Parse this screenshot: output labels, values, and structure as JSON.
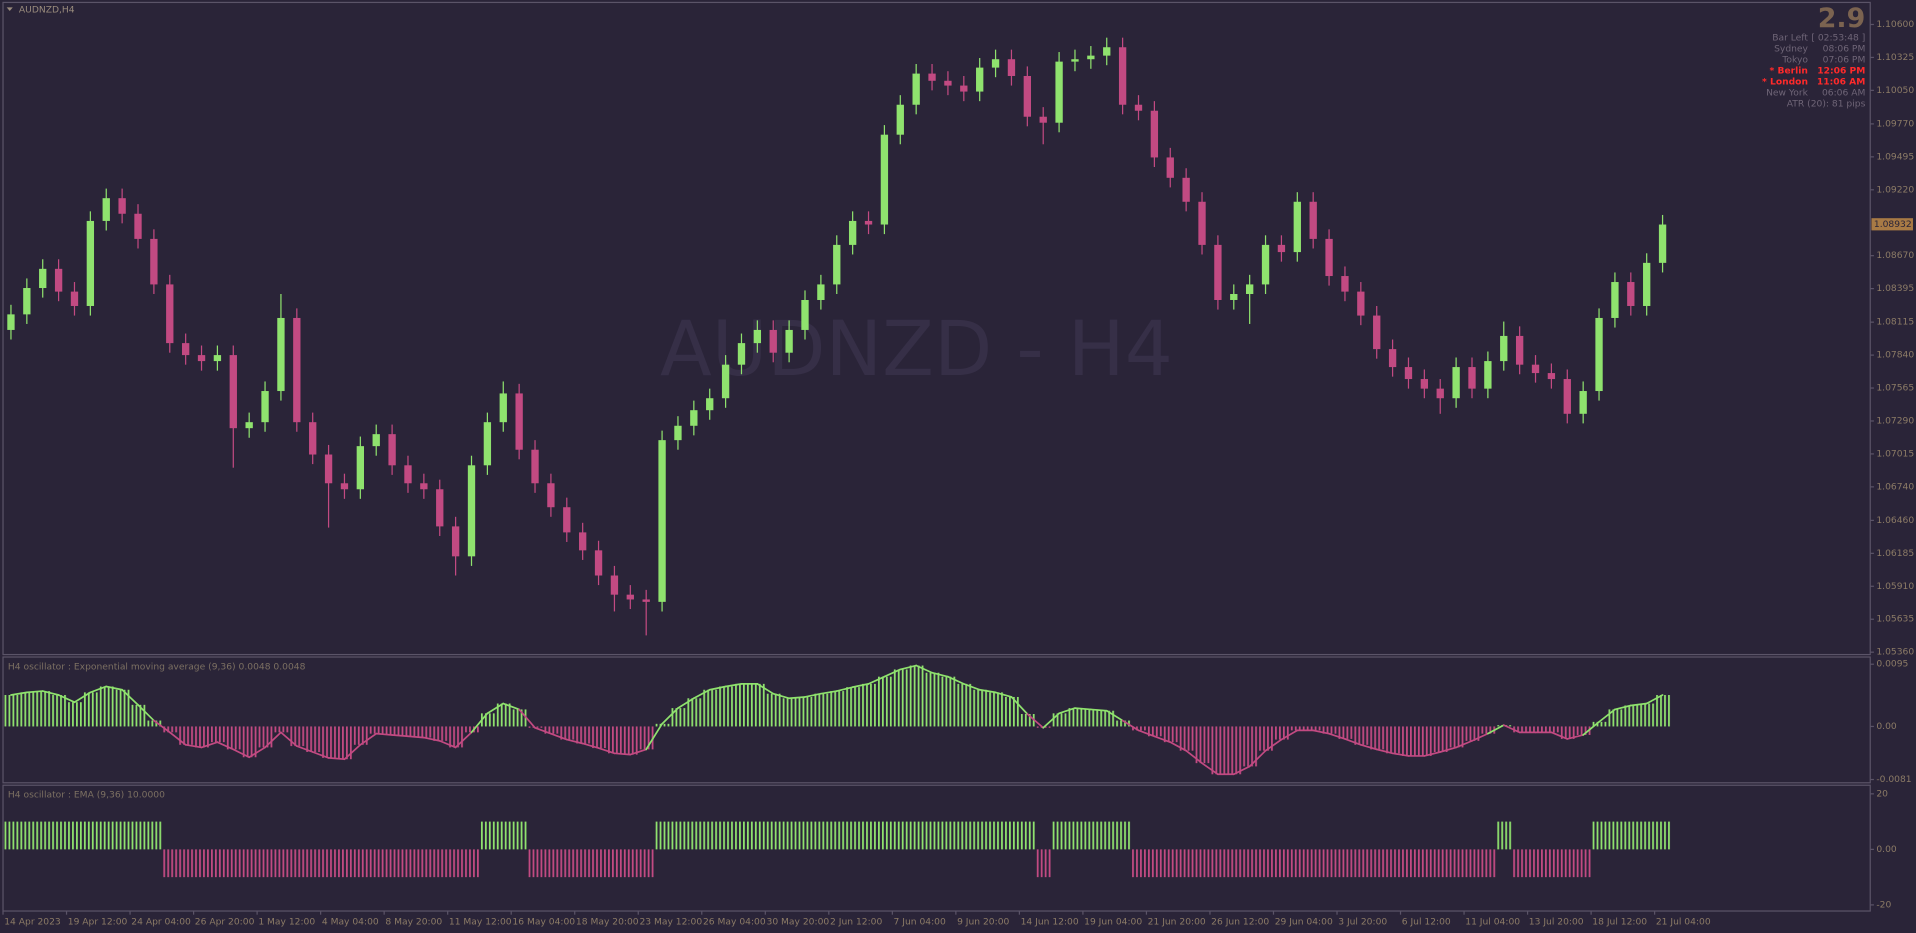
{
  "chart_data": [
    {
      "type": "candlestick",
      "title": "AUDNZD,H4",
      "watermark": "AUDNZD - H4",
      "up_color": "#8fe26e",
      "down_color": "#c24a82",
      "open": [
        1.0805,
        1.0818,
        1.084,
        1.0856,
        1.0837,
        1.0825,
        1.0896,
        1.0915,
        1.0902,
        1.0881,
        1.0843,
        1.0794,
        1.0784,
        1.0779,
        1.0784,
        1.0723,
        1.0728,
        1.0754,
        1.0815,
        1.0728,
        1.0701,
        1.0677,
        1.0672,
        1.0708,
        1.0718,
        1.0692,
        1.0677,
        1.0672,
        1.0641,
        1.0616,
        1.0692,
        1.0728,
        1.0752,
        1.0705,
        1.0677,
        1.0657,
        1.0636,
        1.0621,
        1.06,
        1.0584,
        1.058,
        1.0578,
        1.0713,
        1.0725,
        1.0738,
        1.0748,
        1.0776,
        1.0794,
        1.0805,
        1.0786,
        1.0805,
        1.083,
        1.0843,
        1.0876,
        1.0896,
        1.0893,
        1.0968,
        1.0993,
        1.1019,
        1.1013,
        1.1009,
        1.1004,
        1.1024,
        1.1031,
        1.1017,
        1.0983,
        1.0978,
        1.1029,
        1.1031,
        1.1034,
        1.1041,
        1.0993,
        1.0988,
        1.0949,
        1.0932,
        1.0912,
        1.0876,
        1.083,
        1.0835,
        1.0843,
        1.0876,
        1.087,
        1.0912,
        1.0881,
        1.085,
        1.0837,
        1.0817,
        1.0789,
        1.0774,
        1.0764,
        1.0756,
        1.0748,
        1.0774,
        1.0756,
        1.0779,
        1.08,
        1.0776,
        1.0769,
        1.0764,
        1.0735,
        1.0754,
        1.0815,
        1.0845,
        1.0825,
        1.0861
      ],
      "high": [
        1.0826,
        1.0848,
        1.0864,
        1.0864,
        1.0845,
        1.0904,
        1.0923,
        1.0923,
        1.091,
        1.0889,
        1.0851,
        1.0802,
        1.0792,
        1.0792,
        1.0792,
        1.0736,
        1.0762,
        1.0835,
        1.0823,
        1.0736,
        1.0709,
        1.0685,
        1.0716,
        1.0726,
        1.0726,
        1.07,
        1.0685,
        1.068,
        1.0649,
        1.07,
        1.0736,
        1.0762,
        1.076,
        1.0713,
        1.0685,
        1.0665,
        1.0644,
        1.0629,
        1.0608,
        1.0592,
        1.0588,
        1.0721,
        1.0733,
        1.0746,
        1.0756,
        1.0784,
        1.0802,
        1.0813,
        1.0813,
        1.0813,
        1.0838,
        1.0851,
        1.0884,
        1.0904,
        1.0904,
        1.0976,
        1.1001,
        1.1027,
        1.1027,
        1.1021,
        1.1017,
        1.1032,
        1.1039,
        1.1039,
        1.1025,
        1.0991,
        1.1037,
        1.1039,
        1.1042,
        1.1049,
        1.1049,
        1.1001,
        1.0996,
        1.0957,
        1.094,
        1.092,
        1.0884,
        1.0843,
        1.0851,
        1.0884,
        1.0884,
        1.092,
        1.092,
        1.0889,
        1.0858,
        1.0845,
        1.0825,
        1.0797,
        1.0782,
        1.0772,
        1.0764,
        1.0782,
        1.0782,
        1.0787,
        1.0812,
        1.0808,
        1.0784,
        1.0777,
        1.0772,
        1.0762,
        1.0823,
        1.0853,
        1.0853,
        1.0869,
        1.0901
      ],
      "low": [
        1.0797,
        1.081,
        1.0832,
        1.0829,
        1.0817,
        1.0817,
        1.0888,
        1.0894,
        1.0873,
        1.0835,
        1.0786,
        1.0776,
        1.0771,
        1.0771,
        1.069,
        1.0715,
        1.072,
        1.0746,
        1.072,
        1.0693,
        1.064,
        1.0664,
        1.0664,
        1.07,
        1.0684,
        1.0669,
        1.0664,
        1.0633,
        1.06,
        1.0608,
        1.0684,
        1.072,
        1.0697,
        1.0669,
        1.0649,
        1.0628,
        1.0613,
        1.0592,
        1.057,
        1.0572,
        1.055,
        1.057,
        1.0705,
        1.0717,
        1.073,
        1.074,
        1.0768,
        1.0786,
        1.0778,
        1.0778,
        1.0797,
        1.0822,
        1.0835,
        1.0868,
        1.0885,
        1.0885,
        1.096,
        1.0985,
        1.1005,
        1.1001,
        1.0996,
        1.0996,
        1.1016,
        1.1009,
        1.0975,
        1.096,
        1.097,
        1.1021,
        1.1023,
        1.1026,
        1.0985,
        1.098,
        1.0941,
        1.0924,
        1.0904,
        1.0868,
        1.0822,
        1.0822,
        1.081,
        1.0835,
        1.0862,
        1.0862,
        1.0873,
        1.0842,
        1.0829,
        1.0809,
        1.0781,
        1.0766,
        1.0756,
        1.0748,
        1.0735,
        1.074,
        1.0748,
        1.0748,
        1.0771,
        1.0768,
        1.0761,
        1.0756,
        1.0727,
        1.0727,
        1.0746,
        1.0807,
        1.0817,
        1.0817,
        1.0853
      ],
      "close": [
        1.0818,
        1.084,
        1.0856,
        1.0837,
        1.0825,
        1.0896,
        1.0915,
        1.0902,
        1.0881,
        1.0843,
        1.0794,
        1.0784,
        1.0779,
        1.0784,
        1.0723,
        1.0728,
        1.0754,
        1.0815,
        1.0728,
        1.0701,
        1.0677,
        1.0672,
        1.0708,
        1.0718,
        1.0692,
        1.0677,
        1.0672,
        1.0641,
        1.0616,
        1.0692,
        1.0728,
        1.0752,
        1.0705,
        1.0677,
        1.0657,
        1.0636,
        1.0621,
        1.06,
        1.0584,
        1.058,
        1.0578,
        1.0713,
        1.0725,
        1.0738,
        1.0748,
        1.0776,
        1.0794,
        1.0805,
        1.0786,
        1.0805,
        1.083,
        1.0843,
        1.0876,
        1.0896,
        1.0893,
        1.0968,
        1.0993,
        1.1019,
        1.1013,
        1.1009,
        1.1004,
        1.1024,
        1.1031,
        1.1017,
        1.0983,
        1.0978,
        1.1029,
        1.1031,
        1.1034,
        1.1041,
        1.0993,
        1.0988,
        1.0949,
        1.0932,
        1.0912,
        1.0876,
        1.083,
        1.0835,
        1.0843,
        1.0876,
        1.087,
        1.0912,
        1.0881,
        1.085,
        1.0837,
        1.0817,
        1.0789,
        1.0774,
        1.0764,
        1.0756,
        1.0748,
        1.0774,
        1.0756,
        1.0779,
        1.08,
        1.0776,
        1.0769,
        1.0764,
        1.0735,
        1.0754,
        1.0815,
        1.0845,
        1.0825,
        1.0861,
        1.0893
      ],
      "xlim": [
        0,
        117.5
      ],
      "xticks": [
        {
          "value": 0,
          "label": "14 Apr 2023"
        },
        {
          "value": 4,
          "label": "19 Apr 12:00"
        },
        {
          "value": 8,
          "label": "24 Apr 04:00"
        },
        {
          "value": 12,
          "label": "26 Apr 20:00"
        },
        {
          "value": 16,
          "label": "1 May 12:00"
        },
        {
          "value": 20,
          "label": "4 May 04:00"
        },
        {
          "value": 24,
          "label": "8 May 20:00"
        },
        {
          "value": 28,
          "label": "11 May 12:00"
        },
        {
          "value": 32,
          "label": "16 May 04:00"
        },
        {
          "value": 36,
          "label": "18 May 20:00"
        },
        {
          "value": 40,
          "label": "23 May 12:00"
        },
        {
          "value": 44,
          "label": "26 May 04:00"
        },
        {
          "value": 48,
          "label": "30 May 20:00"
        },
        {
          "value": 52,
          "label": "2 Jun 12:00"
        },
        {
          "value": 56,
          "label": "7 Jun 04:00"
        },
        {
          "value": 60,
          "label": "9 Jun 20:00"
        },
        {
          "value": 64,
          "label": "14 Jun 12:00"
        },
        {
          "value": 68,
          "label": "19 Jun 04:00"
        },
        {
          "value": 72,
          "label": "21 Jun 20:00"
        },
        {
          "value": 76,
          "label": "26 Jun 12:00"
        },
        {
          "value": 80,
          "label": "29 Jun 04:00"
        },
        {
          "value": 84,
          "label": "3 Jul 20:00"
        },
        {
          "value": 88,
          "label": "6 Jul 12:00"
        },
        {
          "value": 92,
          "label": "11 Jul 04:00"
        },
        {
          "value": 96,
          "label": "13 Jul 20:00"
        },
        {
          "value": 100,
          "label": "18 Jul 12:00"
        },
        {
          "value": 104,
          "label": "21 Jul 04:00"
        }
      ],
      "ylim": [
        1.0534,
        1.10784
      ],
      "yticks": [
        {
          "value": 1.106,
          "label": "1.10600"
        },
        {
          "value": 1.10325,
          "label": "1.10325"
        },
        {
          "value": 1.1005,
          "label": "1.10050"
        },
        {
          "value": 1.0977,
          "label": "1.09770"
        },
        {
          "value": 1.09495,
          "label": "1.09495"
        },
        {
          "value": 1.0922,
          "label": "1.09220"
        },
        {
          "value": 1.0867,
          "label": "1.08670"
        },
        {
          "value": 1.08395,
          "label": "1.08395"
        },
        {
          "value": 1.08115,
          "label": "1.08115"
        },
        {
          "value": 1.0784,
          "label": "1.07840"
        },
        {
          "value": 1.07565,
          "label": "1.07565"
        },
        {
          "value": 1.0729,
          "label": "1.07290"
        },
        {
          "value": 1.07015,
          "label": "1.07015"
        },
        {
          "value": 1.0674,
          "label": "1.06740"
        },
        {
          "value": 1.0646,
          "label": "1.06460"
        },
        {
          "value": 1.06185,
          "label": "1.06185"
        },
        {
          "value": 1.0591,
          "label": "1.05910"
        },
        {
          "value": 1.05635,
          "label": "1.05635"
        },
        {
          "value": 1.0536,
          "label": "1.05360"
        }
      ],
      "last_price": {
        "value": 1.08932,
        "label": "1.08932"
      },
      "last_price_color": "#a87a45"
    },
    {
      "type": "histogram",
      "title": "H4  oscillator : Exponential moving average (9,36)  0.0048 0.0048",
      "positive_color": "#8fe26e",
      "negative_color": "#c24a82",
      "values": [
        0.0048,
        0.0052,
        0.0054,
        0.0048,
        0.0037,
        0.0052,
        0.0061,
        0.0056,
        0.0033,
        0.0009,
        -0.0009,
        -0.0028,
        -0.0032,
        -0.0024,
        -0.0035,
        -0.0047,
        -0.0032,
        -0.0009,
        -0.003,
        -0.0039,
        -0.0048,
        -0.005,
        -0.0028,
        -0.0011,
        -0.0013,
        -0.0015,
        -0.0017,
        -0.0022,
        -0.0032,
        -0.0009,
        0.002,
        0.0035,
        0.0026,
        -0.0002,
        -0.0011,
        -0.002,
        -0.0026,
        -0.0033,
        -0.0041,
        -0.0043,
        -0.0035,
        0.0004,
        0.0028,
        0.0043,
        0.0056,
        0.0061,
        0.0065,
        0.0065,
        0.005,
        0.0043,
        0.0045,
        0.005,
        0.0054,
        0.006,
        0.0065,
        0.0076,
        0.0087,
        0.0093,
        0.0082,
        0.0076,
        0.0065,
        0.0056,
        0.0052,
        0.0045,
        0.0019,
        -0.0002,
        0.002,
        0.0028,
        0.0026,
        0.0024,
        0.0009,
        -0.0006,
        -0.0015,
        -0.0024,
        -0.0037,
        -0.0056,
        -0.0073,
        -0.0073,
        -0.0061,
        -0.0037,
        -0.002,
        -0.0006,
        -0.0006,
        -0.0011,
        -0.0019,
        -0.0028,
        -0.0035,
        -0.0041,
        -0.0045,
        -0.0045,
        -0.0039,
        -0.0032,
        -0.0022,
        -0.0011,
        0.0002,
        -0.0009,
        -0.0009,
        -0.0009,
        -0.0019,
        -0.0013,
        0.0007,
        0.0026,
        0.0032,
        0.0035,
        0.0048
      ],
      "ylim": [
        -0.0086,
        0.0106
      ],
      "yticks": [
        0.0095,
        {
          "value": 0,
          "label": "0.00"
        },
        -0.0081
      ]
    },
    {
      "type": "bar",
      "title": "H4  oscillator : EMA (9,36)  10.0000",
      "positive_color": "#8fe26e",
      "negative_color": "#c24a82",
      "values": [
        10,
        10,
        10,
        10,
        10,
        10,
        10,
        10,
        10,
        10,
        -10,
        -10,
        -10,
        -10,
        -10,
        -10,
        -10,
        -10,
        -10,
        -10,
        -10,
        -10,
        -10,
        -10,
        -10,
        -10,
        -10,
        -10,
        -10,
        -10,
        10,
        10,
        10,
        -10,
        -10,
        -10,
        -10,
        -10,
        -10,
        -10,
        -10,
        10,
        10,
        10,
        10,
        10,
        10,
        10,
        10,
        10,
        10,
        10,
        10,
        10,
        10,
        10,
        10,
        10,
        10,
        10,
        10,
        10,
        10,
        10,
        10,
        -10,
        10,
        10,
        10,
        10,
        10,
        -10,
        -10,
        -10,
        -10,
        -10,
        -10,
        -10,
        -10,
        -10,
        -10,
        -10,
        -10,
        -10,
        -10,
        -10,
        -10,
        -10,
        -10,
        -10,
        -10,
        -10,
        -10,
        -10,
        10,
        -10,
        -10,
        -10,
        -10,
        -10,
        10,
        10,
        10,
        10,
        10
      ],
      "ylim": [
        -22.2,
        23.1
      ],
      "yticks": [
        20,
        {
          "value": 0,
          "label": "0.00"
        },
        -20
      ]
    }
  ],
  "info_panel": {
    "countdown": "2.9",
    "highlight_color": "#ff2a2a",
    "rows": [
      {
        "label": "Bar Left",
        "value": "[ 02:53:48 ]",
        "highlight": false
      },
      {
        "label": "Sydney",
        "value": "08:06 PM",
        "highlight": false
      },
      {
        "label": "Tokyo",
        "value": "07:06 PM",
        "highlight": false
      },
      {
        "label": "* Berlin",
        "value": "12:06 PM",
        "highlight": true
      },
      {
        "label": "* London",
        "value": "11:06 AM",
        "highlight": true
      },
      {
        "label": "New York",
        "value": "06:06 AM",
        "highlight": false
      }
    ],
    "atr": "ATR (20): 81 pips"
  }
}
